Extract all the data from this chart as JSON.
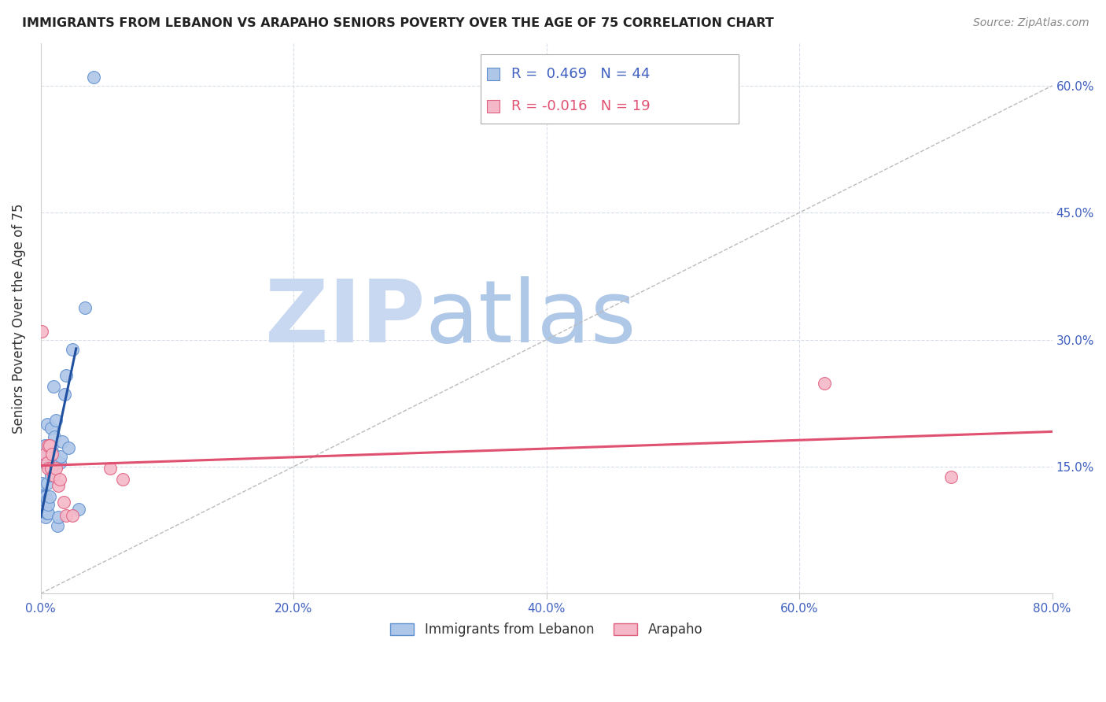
{
  "title": "IMMIGRANTS FROM LEBANON VS ARAPAHO SENIORS POVERTY OVER THE AGE OF 75 CORRELATION CHART",
  "source": "Source: ZipAtlas.com",
  "ylabel": "Seniors Poverty Over the Age of 75",
  "xlim": [
    0.0,
    0.8
  ],
  "ylim": [
    0.0,
    0.65
  ],
  "blue_R": 0.469,
  "blue_N": 44,
  "pink_R": -0.016,
  "pink_N": 19,
  "legend_label_blue": "Immigrants from Lebanon",
  "legend_label_pink": "Arapaho",
  "blue_color": "#aec6e8",
  "pink_color": "#f5b8c8",
  "blue_edge_color": "#6090d0",
  "pink_edge_color": "#e06080",
  "blue_line_color": "#2050a0",
  "pink_line_color": "#e05070",
  "title_color": "#222222",
  "axis_tick_color": "#4060c0",
  "watermark_zip_color": "#c8d8f0",
  "watermark_atlas_color": "#b0c8e8",
  "grid_color": "#d8dde8",
  "diag_color": "#bbbbbb",
  "blue_x": [
    0.001,
    0.001,
    0.001,
    0.002,
    0.002,
    0.002,
    0.002,
    0.003,
    0.003,
    0.003,
    0.003,
    0.004,
    0.004,
    0.004,
    0.004,
    0.005,
    0.005,
    0.005,
    0.005,
    0.006,
    0.006,
    0.006,
    0.007,
    0.007,
    0.008,
    0.008,
    0.009,
    0.009,
    0.01,
    0.01,
    0.011,
    0.012,
    0.013,
    0.014,
    0.015,
    0.016,
    0.017,
    0.019,
    0.02,
    0.022,
    0.025,
    0.03,
    0.035,
    0.042
  ],
  "blue_y": [
    0.115,
    0.12,
    0.13,
    0.105,
    0.11,
    0.115,
    0.16,
    0.095,
    0.1,
    0.11,
    0.175,
    0.09,
    0.1,
    0.115,
    0.155,
    0.095,
    0.11,
    0.13,
    0.2,
    0.095,
    0.105,
    0.155,
    0.115,
    0.15,
    0.14,
    0.195,
    0.15,
    0.175,
    0.165,
    0.245,
    0.185,
    0.205,
    0.08,
    0.09,
    0.155,
    0.162,
    0.18,
    0.235,
    0.258,
    0.172,
    0.288,
    0.1,
    0.338,
    0.61
  ],
  "pink_x": [
    0.001,
    0.003,
    0.005,
    0.006,
    0.006,
    0.007,
    0.008,
    0.009,
    0.01,
    0.012,
    0.014,
    0.015,
    0.018,
    0.02,
    0.025,
    0.055,
    0.065,
    0.62,
    0.72
  ],
  "pink_y": [
    0.31,
    0.165,
    0.155,
    0.148,
    0.175,
    0.175,
    0.148,
    0.165,
    0.14,
    0.148,
    0.128,
    0.135,
    0.108,
    0.092,
    0.092,
    0.148,
    0.135,
    0.248,
    0.138
  ],
  "blue_trend_x": [
    0.0,
    0.028
  ],
  "blue_trend_y_start": 0.1,
  "blue_trend_y_end": 0.295,
  "pink_trend_x": [
    0.0,
    0.8
  ],
  "pink_trend_y_start": 0.193,
  "pink_trend_y_end": 0.175
}
